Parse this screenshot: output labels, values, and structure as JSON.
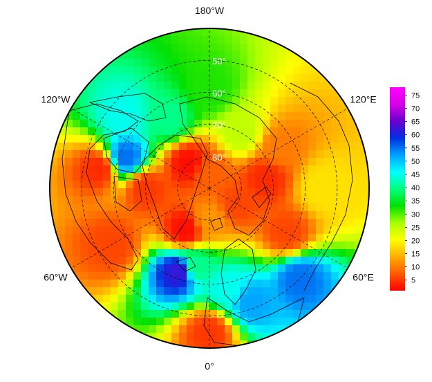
{
  "figure": {
    "type": "polar-stereographic-map",
    "projection": "north-polar",
    "colormap": "rainbow",
    "background": "#ffffff"
  },
  "longitude_labels": [
    {
      "text": "180°W",
      "lon": 180
    },
    {
      "text": "120°E",
      "lon": 120
    },
    {
      "text": "60°E",
      "lon": 60
    },
    {
      "text": "0°",
      "lon": 0
    },
    {
      "text": "60°W",
      "lon": -60
    },
    {
      "text": "120°W",
      "lon": -120
    }
  ],
  "latitude_labels": [
    {
      "text": "50°",
      "lat": 50
    },
    {
      "text": "60°",
      "lat": 60
    },
    {
      "text": "70°",
      "lat": 70
    },
    {
      "text": "80°",
      "lat": 80
    }
  ],
  "colorbar": {
    "min": 1,
    "max": 78,
    "ticks": [
      5,
      10,
      15,
      20,
      25,
      30,
      35,
      40,
      45,
      50,
      55,
      60,
      65,
      70,
      75
    ],
    "colors": [
      "#ff0000",
      "#ff5a00",
      "#ffae00",
      "#ffff00",
      "#a8ff00",
      "#00e000",
      "#00ff80",
      "#00ffff",
      "#00a0ff",
      "#0030e0",
      "#6a00d0",
      "#d800e8",
      "#ff00ff"
    ]
  },
  "chart_data": {
    "type": "heatmap",
    "value_range": [
      1,
      78
    ],
    "regions": [
      {
        "lon": -30,
        "lat": 75,
        "value": 2
      },
      {
        "lon": -90,
        "lat": 70,
        "value": 5
      },
      {
        "lon": -60,
        "lat": 55,
        "value": 6
      },
      {
        "lon": -100,
        "lat": 55,
        "value": 4
      },
      {
        "lon": -110,
        "lat": 62,
        "value": 55
      },
      {
        "lon": -130,
        "lat": 55,
        "value": 45
      },
      {
        "lon": -150,
        "lat": 65,
        "value": 40
      },
      {
        "lon": 180,
        "lat": 60,
        "value": 32
      },
      {
        "lon": 150,
        "lat": 70,
        "value": 25
      },
      {
        "lon": 120,
        "lat": 65,
        "value": 10
      },
      {
        "lon": 100,
        "lat": 72,
        "value": 4
      },
      {
        "lon": 90,
        "lat": 55,
        "value": 18
      },
      {
        "lon": 60,
        "lat": 62,
        "value": 6
      },
      {
        "lon": 45,
        "lat": 50,
        "value": 55
      },
      {
        "lon": 20,
        "lat": 52,
        "value": 52
      },
      {
        "lon": 10,
        "lat": 58,
        "value": 45
      },
      {
        "lon": -10,
        "lat": 65,
        "value": 40
      },
      {
        "lon": -20,
        "lat": 62,
        "value": 62
      },
      {
        "lon": 0,
        "lat": 80,
        "value": 12
      },
      {
        "lon": 0,
        "lat": 45,
        "value": 5
      },
      {
        "lon": 180,
        "lat": 85,
        "value": 8
      },
      {
        "lon": 60,
        "lat": 80,
        "value": 6
      },
      {
        "lon": -140,
        "lat": 80,
        "value": 2
      }
    ]
  }
}
